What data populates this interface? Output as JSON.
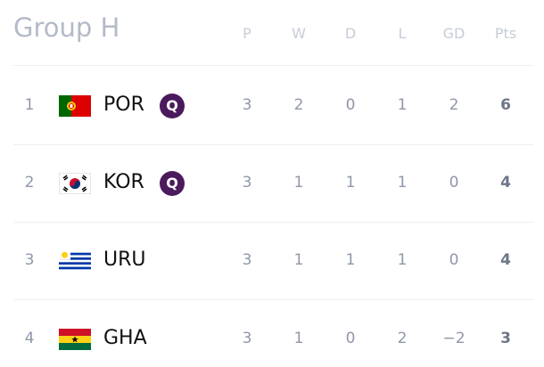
{
  "title": "Group H",
  "table": {
    "columns": [
      "P",
      "W",
      "D",
      "L",
      "GD",
      "Pts"
    ],
    "rows": [
      {
        "rank": 1,
        "team": "POR",
        "badge": "Q",
        "stats": [
          3,
          2,
          0,
          1,
          2,
          6
        ]
      },
      {
        "rank": 2,
        "team": "KOR",
        "badge": "Q",
        "stats": [
          3,
          1,
          1,
          1,
          0,
          4
        ]
      },
      {
        "rank": 3,
        "team": "URU",
        "stats": [
          3,
          1,
          1,
          1,
          0,
          4
        ]
      },
      {
        "rank": 4,
        "team": "GHA",
        "stats": [
          3,
          1,
          0,
          2,
          "−2",
          3
        ]
      }
    ]
  }
}
